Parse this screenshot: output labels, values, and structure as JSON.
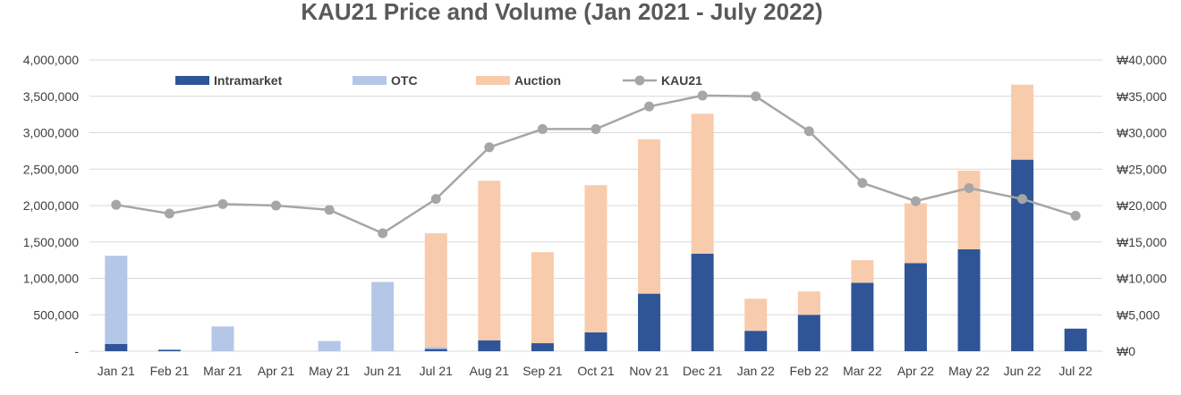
{
  "chart_data": {
    "type": "bar",
    "title": "KAU21 Price and Volume (Jan 2021 - July 2022)",
    "categories": [
      "Jan 21",
      "Feb 21",
      "Mar 21",
      "Apr 21",
      "May 21",
      "Jun 21",
      "Jul 21",
      "Aug 21",
      "Sep 21",
      "Oct 21",
      "Nov 21",
      "Dec 21",
      "Jan 22",
      "Feb 22",
      "Mar 22",
      "Apr 22",
      "May 22",
      "Jun 22",
      "Jul 22"
    ],
    "stacked": true,
    "series": [
      {
        "name": "Intramarket",
        "type": "bar",
        "axis": "left",
        "color": "#2f5597",
        "values": [
          100000,
          20000,
          0,
          0,
          0,
          0,
          30000,
          150000,
          110000,
          260000,
          790000,
          1340000,
          280000,
          500000,
          940000,
          1210000,
          1400000,
          2630000,
          310000
        ]
      },
      {
        "name": "OTC",
        "type": "bar",
        "axis": "left",
        "color": "#b4c7e7",
        "values": [
          1210000,
          0,
          340000,
          0,
          140000,
          950000,
          30000,
          0,
          0,
          0,
          0,
          0,
          0,
          0,
          0,
          0,
          0,
          0,
          0
        ]
      },
      {
        "name": "Auction",
        "type": "bar",
        "axis": "left",
        "color": "#f8cbad",
        "values": [
          0,
          0,
          0,
          0,
          0,
          0,
          1560000,
          2190000,
          1250000,
          2020000,
          2120000,
          1920000,
          440000,
          320000,
          310000,
          820000,
          1080000,
          1030000,
          0
        ]
      },
      {
        "name": "KAU21",
        "type": "line",
        "axis": "right",
        "color": "#a6a6a6",
        "values": [
          20100,
          18900,
          20200,
          20000,
          19400,
          16200,
          20900,
          28000,
          30500,
          30500,
          33600,
          35100,
          35000,
          30200,
          23100,
          20600,
          22400,
          20900,
          18600
        ]
      }
    ],
    "yleft": {
      "lim": [
        0,
        4000000
      ],
      "ticks": [
        "-",
        "500,000",
        "1,000,000",
        "1,500,000",
        "2,000,000",
        "2,500,000",
        "3,000,000",
        "3,500,000",
        "4,000,000"
      ]
    },
    "yright": {
      "lim": [
        0,
        40000
      ],
      "ticks": [
        "₩0",
        "₩5,000",
        "₩10,000",
        "₩15,000",
        "₩20,000",
        "₩25,000",
        "₩30,000",
        "₩35,000",
        "₩40,000"
      ]
    },
    "grid": true,
    "legend": "top"
  }
}
